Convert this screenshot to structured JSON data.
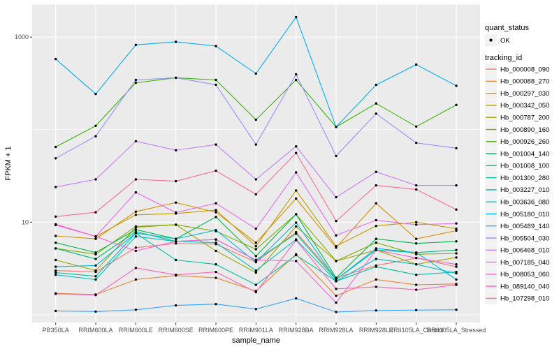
{
  "colors": {
    "panel_bg": "#EBEBEB",
    "grid": "#FFFFFF",
    "legend_key_bg": "#F2F2F2",
    "axis_text": "#4D4D4D",
    "tick_mark": "#333333",
    "point": "#000000",
    "title_text": "#000000"
  },
  "chart_data": {
    "type": "line",
    "title": "",
    "xlabel": "sample_name",
    "ylabel": "FPKM + 1",
    "y_scale": "log10",
    "y_axis": {
      "tick_values": [
        1000,
        10
      ],
      "tick_labels": [
        "1000",
        "10"
      ],
      "minor_gridline_values": [
        100,
        1
      ],
      "range": [
        1,
        1700
      ]
    },
    "categories": [
      "PB350LA",
      "RRIM600LA",
      "RRIM600LE",
      "RRIM600SE",
      "RRIM600PE",
      "RRIM901LA",
      "RRIM928BA",
      "RRIM928LA",
      "RRIM928LE",
      "RRII105LA_Control",
      "RRII105LA_Stressed"
    ],
    "legend": {
      "shape_title": "quant_status",
      "shape_entries": [
        {
          "label": "OK",
          "marker": "black-point"
        }
      ],
      "color_title": "tracking_id",
      "position": "right"
    },
    "series": [
      {
        "name": "Hb_000008_090",
        "color": "#F8766D",
        "values": [
          3.0,
          2.9,
          5.3,
          5.9,
          5.8,
          3.7,
          7.8,
          2.5,
          3.4,
          4.1,
          3.3
        ]
      },
      {
        "name": "Hb_000088_270",
        "color": "#EA8331",
        "values": [
          1.7,
          1.65,
          2.4,
          2.65,
          2.5,
          1.8,
          4.5,
          1.6,
          2.4,
          2.1,
          2.15
        ]
      },
      {
        "name": "Hb_000297_030",
        "color": "#D89000",
        "values": [
          7.1,
          6.6,
          13,
          16.3,
          12.8,
          6.0,
          18,
          5.3,
          16,
          6.6,
          8.1
        ]
      },
      {
        "name": "Hb_000342_050",
        "color": "#C09B00",
        "values": [
          9.5,
          7.0,
          12,
          12.4,
          13.5,
          5.5,
          22,
          5.5,
          9.1,
          10,
          8.5
        ]
      },
      {
        "name": "Hb_000787_200",
        "color": "#A3A500",
        "values": [
          3.9,
          3.0,
          8.8,
          9.4,
          4.9,
          2.85,
          9.0,
          3.8,
          5.0,
          3.5,
          4.15
        ]
      },
      {
        "name": "Hb_000890_160",
        "color": "#7CAE00",
        "values": [
          5.2,
          4.5,
          9.0,
          9.4,
          8.0,
          5.1,
          12.2,
          3.8,
          6.0,
          4.5,
          4.6
        ]
      },
      {
        "name": "Hb_000926_260",
        "color": "#39B600",
        "values": [
          65,
          110,
          321,
          364,
          345,
          128,
          345,
          107,
          192,
          108,
          185
        ]
      },
      {
        "name": "Hb_001004_140",
        "color": "#00BB4E",
        "values": [
          6.0,
          4.7,
          8.3,
          6.6,
          11.4,
          4.3,
          12.2,
          2.5,
          6.6,
          5.9,
          6.2
        ]
      },
      {
        "name": "Hb_001008_100",
        "color": "#00BF7D",
        "values": [
          5.2,
          4.0,
          7.9,
          6.2,
          6.5,
          3.9,
          7.5,
          2.4,
          5.0,
          4.7,
          5.0
        ]
      },
      {
        "name": "Hb_001300_280",
        "color": "#00C1A3",
        "values": [
          2.85,
          2.6,
          7.6,
          3.9,
          3.5,
          2.1,
          4.4,
          2.3,
          3.3,
          2.7,
          2.9
        ]
      },
      {
        "name": "Hb_003227_010",
        "color": "#00BFC4",
        "values": [
          2.7,
          2.4,
          7.0,
          6.2,
          6.0,
          3.0,
          6.5,
          2.3,
          4.0,
          3.5,
          2.8
        ]
      },
      {
        "name": "Hb_003636_080",
        "color": "#00BAE0",
        "values": [
          3.3,
          3.4,
          7.6,
          6.6,
          8.2,
          3.7,
          9.9,
          2.4,
          5.2,
          4.7,
          2.4
        ]
      },
      {
        "name": "Hb_005180_010",
        "color": "#00B0F6",
        "values": [
          580,
          243,
          825,
          890,
          800,
          404,
          1650,
          107,
          305,
          505,
          298
        ]
      },
      {
        "name": "Hb_005489_140",
        "color": "#35A2FF",
        "values": [
          1.1,
          1.08,
          1.13,
          1.26,
          1.3,
          1.15,
          1.5,
          1.07,
          1.11,
          1.12,
          1.13
        ]
      },
      {
        "name": "Hb_005504_030",
        "color": "#9590FF",
        "values": [
          49,
          85,
          345,
          364,
          306,
          69,
          396,
          52,
          149,
          72,
          63
        ]
      },
      {
        "name": "Hb_006468_010",
        "color": "#C77CFF",
        "values": [
          24,
          29,
          75,
          60,
          69,
          29,
          66,
          18.6,
          35,
          25,
          25
        ]
      },
      {
        "name": "Hb_007185_040",
        "color": "#E76BF3",
        "values": [
          9.3,
          7.0,
          21,
          12.7,
          16,
          8.5,
          34.5,
          7.2,
          10.5,
          9.4,
          9.7
        ]
      },
      {
        "name": "Hb_008053_060",
        "color": "#FA62DB",
        "values": [
          9.5,
          7.0,
          4.9,
          6.2,
          6.5,
          3.9,
          3.8,
          1.35,
          5.0,
          4.1,
          3.5
        ]
      },
      {
        "name": "Hb_089140_040",
        "color": "#FF62BC",
        "values": [
          1.68,
          1.63,
          3.2,
          2.7,
          2.9,
          1.75,
          6.4,
          1.9,
          2.0,
          1.86,
          2.1
        ]
      },
      {
        "name": "Hb_107298_010",
        "color": "#FF6A98",
        "values": [
          11.5,
          12.8,
          29,
          27.7,
          36,
          20,
          56,
          10.3,
          25,
          22.6,
          13.7
        ]
      }
    ]
  }
}
